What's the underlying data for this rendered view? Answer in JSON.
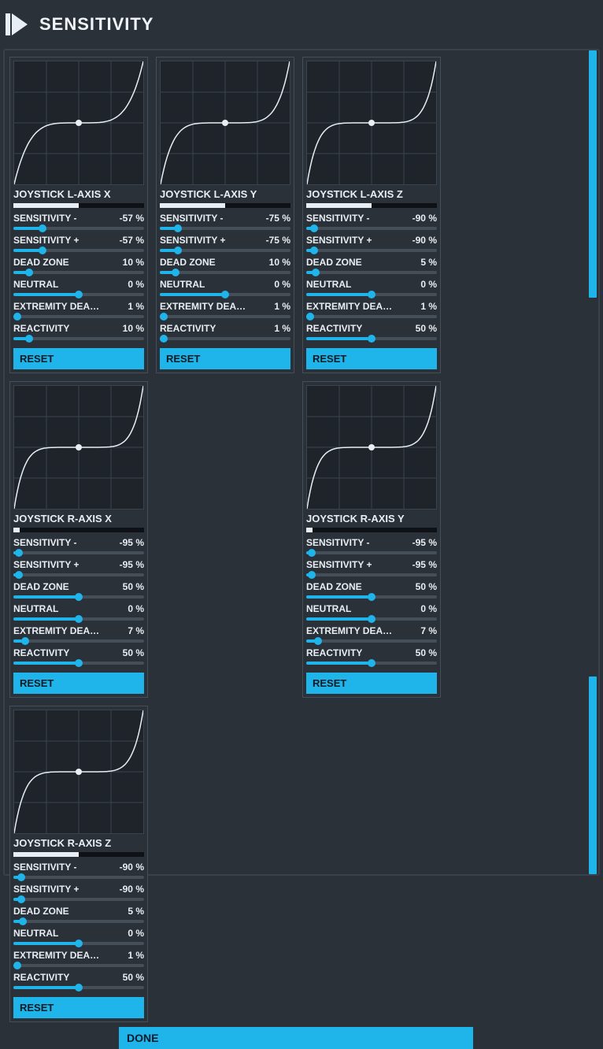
{
  "header": {
    "title": "SENSITIVITY"
  },
  "colors": {
    "accent": "#1fb4ea",
    "panel_border": "#454f5a",
    "chart_bg": "#1e242a",
    "grid_line": "#3b444e",
    "curve": "#e8eef3",
    "text": "#e8eef3",
    "bg": "#2b3138"
  },
  "scroll": {
    "thumb_top_pct": 0,
    "thumb_height_pct": 30,
    "thumb2_top_pct": 76,
    "thumb2_height_pct": 24
  },
  "buttons": {
    "reset": "RESET",
    "done": "DONE"
  },
  "slider_labels": {
    "sens_minus": "SENSITIVITY -",
    "sens_plus": "SENSITIVITY +",
    "dead_zone": "DEAD ZONE",
    "neutral": "NEUTRAL",
    "ext_dead": "EXTREMITY DEAD …",
    "reactivity": "REACTIVITY"
  },
  "panels": [
    {
      "title": "JOYSTICK L-AXIS X",
      "progress_pct": 50,
      "curve_steepness": 0.57,
      "sliders": {
        "sens_minus": {
          "value": "-57 %",
          "pct": 22
        },
        "sens_plus": {
          "value": "-57 %",
          "pct": 22
        },
        "dead_zone": {
          "value": "10 %",
          "pct": 12
        },
        "neutral": {
          "value": "0 %",
          "pct": 50
        },
        "ext_dead": {
          "value": "1 %",
          "pct": 3
        },
        "reactivity": {
          "value": "10 %",
          "pct": 12
        }
      }
    },
    {
      "title": "JOYSTICK L-AXIS Y",
      "progress_pct": 50,
      "curve_steepness": 0.75,
      "sliders": {
        "sens_minus": {
          "value": "-75 %",
          "pct": 14
        },
        "sens_plus": {
          "value": "-75 %",
          "pct": 14
        },
        "dead_zone": {
          "value": "10 %",
          "pct": 12
        },
        "neutral": {
          "value": "0 %",
          "pct": 50
        },
        "ext_dead": {
          "value": "1 %",
          "pct": 3
        },
        "reactivity": {
          "value": "1 %",
          "pct": 3
        }
      }
    },
    {
      "title": "JOYSTICK L-AXIS Z",
      "progress_pct": 50,
      "curve_steepness": 0.9,
      "sliders": {
        "sens_minus": {
          "value": "-90 %",
          "pct": 6
        },
        "sens_plus": {
          "value": "-90 %",
          "pct": 6
        },
        "dead_zone": {
          "value": "5 %",
          "pct": 7
        },
        "neutral": {
          "value": "0 %",
          "pct": 50
        },
        "ext_dead": {
          "value": "1 %",
          "pct": 3
        },
        "reactivity": {
          "value": "50 %",
          "pct": 50
        }
      }
    },
    {
      "title": "JOYSTICK R-AXIS X",
      "progress_pct": 5,
      "curve_steepness": 0.95,
      "sliders": {
        "sens_minus": {
          "value": "-95 %",
          "pct": 4
        },
        "sens_plus": {
          "value": "-95 %",
          "pct": 4
        },
        "dead_zone": {
          "value": "50 %",
          "pct": 50
        },
        "neutral": {
          "value": "0 %",
          "pct": 50
        },
        "ext_dead": {
          "value": "7 %",
          "pct": 9
        },
        "reactivity": {
          "value": "50 %",
          "pct": 50
        }
      }
    },
    {
      "title": "JOYSTICK R-AXIS Y",
      "progress_pct": 5,
      "curve_steepness": 0.95,
      "sliders": {
        "sens_minus": {
          "value": "-95 %",
          "pct": 4
        },
        "sens_plus": {
          "value": "-95 %",
          "pct": 4
        },
        "dead_zone": {
          "value": "50 %",
          "pct": 50
        },
        "neutral": {
          "value": "0 %",
          "pct": 50
        },
        "ext_dead": {
          "value": "7 %",
          "pct": 9
        },
        "reactivity": {
          "value": "50 %",
          "pct": 50
        }
      }
    },
    {
      "title": "JOYSTICK R-AXIS Z",
      "progress_pct": 50,
      "curve_steepness": 0.9,
      "sliders": {
        "sens_minus": {
          "value": "-90 %",
          "pct": 6
        },
        "sens_plus": {
          "value": "-90 %",
          "pct": 6
        },
        "dead_zone": {
          "value": "5 %",
          "pct": 7
        },
        "neutral": {
          "value": "0 %",
          "pct": 50
        },
        "ext_dead": {
          "value": "1 %",
          "pct": 3
        },
        "reactivity": {
          "value": "50 %",
          "pct": 50
        }
      }
    }
  ]
}
